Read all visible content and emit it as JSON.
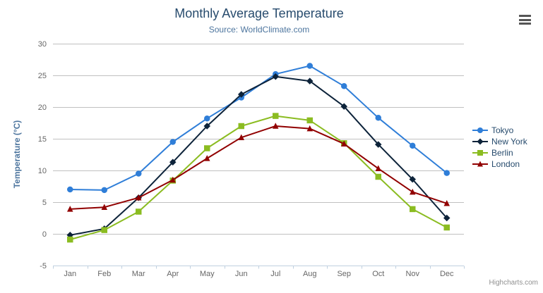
{
  "chart_data": {
    "type": "line",
    "title": "Monthly Average Temperature",
    "subtitle": "Source: WorldClimate.com",
    "xlabel": "",
    "ylabel": "Temperature (°C)",
    "categories": [
      "Jan",
      "Feb",
      "Mar",
      "Apr",
      "May",
      "Jun",
      "Jul",
      "Aug",
      "Sep",
      "Oct",
      "Nov",
      "Dec"
    ],
    "ylim": [
      -5,
      30
    ],
    "yticks": [
      -5,
      0,
      5,
      10,
      15,
      20,
      25,
      30
    ],
    "grid": true,
    "legend_position": "right",
    "series": [
      {
        "name": "Tokyo",
        "color": "#2f7ed8",
        "marker": "circle",
        "values": [
          7.0,
          6.9,
          9.5,
          14.5,
          18.2,
          21.5,
          25.2,
          26.5,
          23.3,
          18.3,
          13.9,
          9.6
        ]
      },
      {
        "name": "New York",
        "color": "#0d233a",
        "marker": "diamond",
        "values": [
          -0.2,
          0.8,
          5.7,
          11.3,
          17.0,
          22.0,
          24.8,
          24.1,
          20.1,
          14.1,
          8.6,
          2.5
        ]
      },
      {
        "name": "Berlin",
        "color": "#8bbc21",
        "marker": "square",
        "values": [
          -0.9,
          0.6,
          3.5,
          8.4,
          13.5,
          17.0,
          18.6,
          17.9,
          14.3,
          9.0,
          3.9,
          1.0
        ]
      },
      {
        "name": "London",
        "color": "#910000",
        "marker": "triangle",
        "values": [
          3.9,
          4.2,
          5.7,
          8.5,
          11.9,
          15.2,
          17.0,
          16.6,
          14.2,
          10.3,
          6.6,
          4.8
        ]
      }
    ]
  },
  "colors": {
    "title": "#274b6d",
    "subtitle": "#4d759e",
    "axis_title": "#4d759e",
    "axis_label": "#666666",
    "gridline": "#c0c0c0",
    "axis_line": "#c0d0e0",
    "legend_text": "#274b6d"
  },
  "export_menu": {
    "icon": "hamburger-icon"
  },
  "credit": {
    "label": "Highcharts.com"
  }
}
